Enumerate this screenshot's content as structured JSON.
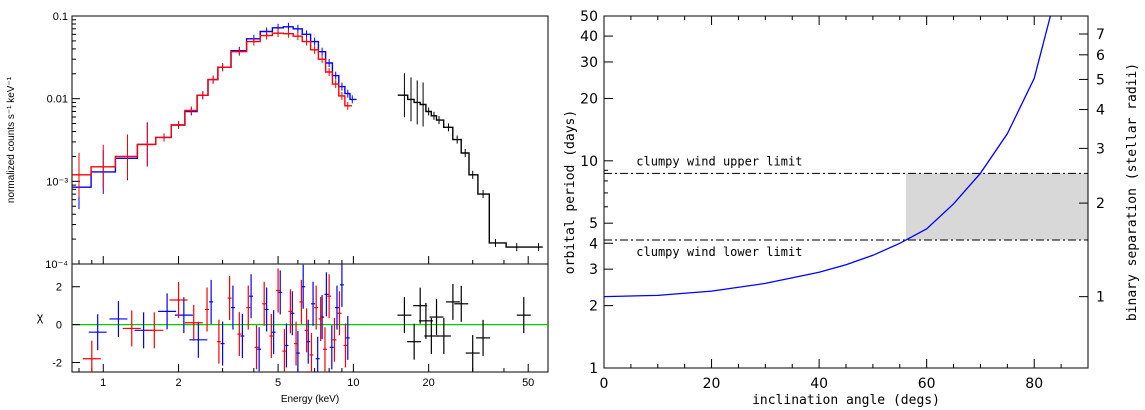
{
  "chart_data": [
    {
      "type": "line",
      "panel": "spectrum-top",
      "ylabel": "normalized counts s⁻¹ keV⁻¹",
      "xscale": "log",
      "yscale": "log",
      "xlim": [
        0.75,
        60
      ],
      "ylim": [
        0.0001,
        0.1
      ],
      "y_tick_labels": [
        "0.1",
        "0.01",
        "10⁻³",
        "10⁻⁴"
      ],
      "y_tick_values": [
        0.1,
        0.01,
        0.001,
        0.0001
      ],
      "series": [
        {
          "color": "#0000ff",
          "x": [
            0.8,
            1.0,
            1.25,
            1.5,
            1.75,
            2.0,
            2.25,
            2.5,
            2.75,
            3.0,
            3.5,
            4.0,
            4.5,
            5.0,
            5.5,
            6.0,
            6.5,
            7.0,
            7.5,
            8.0,
            8.5,
            9.0,
            9.5,
            9.9
          ],
          "y": [
            0.00085,
            0.0013,
            0.0019,
            0.0028,
            0.0034,
            0.0048,
            0.007,
            0.011,
            0.017,
            0.024,
            0.038,
            0.053,
            0.065,
            0.072,
            0.074,
            0.07,
            0.06,
            0.049,
            0.037,
            0.027,
            0.019,
            0.014,
            0.0115,
            0.0098
          ]
        },
        {
          "color": "#ff0000",
          "x": [
            0.8,
            1.0,
            1.25,
            1.5,
            1.75,
            2.0,
            2.25,
            2.5,
            2.75,
            3.0,
            3.5,
            4.0,
            4.5,
            5.0,
            5.5,
            6.0,
            6.5,
            7.0,
            7.5,
            8.0,
            8.5,
            9.0,
            9.5
          ],
          "y": [
            0.0012,
            0.0015,
            0.002,
            0.0028,
            0.0034,
            0.0048,
            0.0072,
            0.011,
            0.017,
            0.024,
            0.037,
            0.049,
            0.058,
            0.062,
            0.061,
            0.057,
            0.049,
            0.039,
            0.03,
            0.021,
            0.015,
            0.0108,
            0.0082
          ]
        },
        {
          "color": "#000000",
          "x": [
            16,
            17,
            18,
            19,
            20,
            21,
            22,
            24,
            26,
            28,
            30,
            33,
            37,
            45,
            55
          ],
          "y": [
            0.011,
            0.0098,
            0.009,
            0.0085,
            0.007,
            0.0062,
            0.0055,
            0.0045,
            0.0032,
            0.0022,
            0.0012,
            0.0007,
            0.00018,
            0.00016,
            0.00016
          ]
        }
      ]
    },
    {
      "type": "scatter",
      "panel": "residuals",
      "xlabel": "Energy (keV)",
      "ylabel": "χ",
      "xscale": "log",
      "xlim": [
        0.75,
        60
      ],
      "ylim": [
        -2.5,
        3.2
      ],
      "x_tick_labels": [
        "1",
        "2",
        "5",
        "10",
        "20",
        "50"
      ],
      "x_tick_values": [
        1,
        2,
        5,
        10,
        20,
        50
      ],
      "y_tick_labels": [
        "2",
        "0",
        "-2"
      ],
      "y_tick_values": [
        2,
        0,
        -2
      ],
      "zero_line_color": "#00cc00",
      "series": [
        {
          "color": "#0000ff",
          "x": [
            0.95,
            1.15,
            1.45,
            1.8,
            2.1,
            2.4,
            2.7,
            3.0,
            3.3,
            3.6,
            3.9,
            4.2,
            4.5,
            4.8,
            5.1,
            5.4,
            5.7,
            6.0,
            6.3,
            6.6,
            6.9,
            7.2,
            7.5,
            7.8,
            8.2,
            8.6,
            9.0,
            9.5
          ],
          "y": [
            -0.4,
            0.3,
            -0.3,
            0.7,
            0.5,
            -0.8,
            1.2,
            -1.0,
            0.9,
            -0.6,
            1.5,
            -1.3,
            0.8,
            -0.4,
            1.7,
            -1.1,
            0.6,
            -1.5,
            2.0,
            -0.9,
            1.1,
            -1.8,
            0.4,
            1.6,
            -1.2,
            0.9,
            2.1,
            -0.7
          ]
        },
        {
          "color": "#ff0000",
          "x": [
            0.9,
            1.3,
            1.6,
            2.0,
            2.3,
            2.6,
            2.9,
            3.2,
            3.5,
            3.8,
            4.1,
            4.4,
            4.7,
            5.0,
            5.3,
            5.6,
            5.9,
            6.2,
            6.5,
            6.8,
            7.1,
            7.4,
            7.7,
            8.0,
            8.4,
            8.8,
            9.3
          ],
          "y": [
            -1.8,
            -0.2,
            -0.3,
            1.3,
            0.1,
            0.8,
            -0.9,
            1.4,
            -0.5,
            0.9,
            -1.2,
            1.1,
            -0.6,
            1.8,
            -1.4,
            0.7,
            -1.0,
            1.2,
            -0.3,
            -1.6,
            0.9,
            0.3,
            -1.3,
            1.5,
            -0.8,
            0.6,
            -1.1
          ]
        },
        {
          "color": "#000000",
          "x": [
            16,
            17.5,
            18.5,
            19.5,
            20.5,
            21.5,
            23,
            25,
            27,
            30,
            33,
            48
          ],
          "y": [
            0.5,
            -0.9,
            1.0,
            0.2,
            -0.6,
            0.4,
            -0.6,
            1.2,
            1.1,
            -1.5,
            -0.7,
            0.5
          ]
        }
      ]
    },
    {
      "type": "line",
      "panel": "orbital-period",
      "xlabel": "inclination angle (degs)",
      "ylabel": "orbital period (days)",
      "y2label": "binary separation (stellar radii)",
      "xlim": [
        0,
        90
      ],
      "ylim": [
        1,
        50
      ],
      "yscale": "log",
      "x_tick_labels": [
        "0",
        "20",
        "40",
        "60",
        "80"
      ],
      "x_tick_values": [
        0,
        20,
        40,
        60,
        80
      ],
      "y_tick_labels": [
        "1",
        "2",
        "3",
        "4",
        "5",
        "10",
        "20",
        "30",
        "40",
        "50"
      ],
      "y_tick_values": [
        1,
        2,
        3,
        4,
        5,
        10,
        20,
        30,
        40,
        50
      ],
      "y2_tick_labels": [
        "1",
        "2",
        "3",
        "4",
        "5",
        "6",
        "7"
      ],
      "y2_tick_values": [
        1,
        2,
        3,
        4,
        5,
        6,
        7
      ],
      "curve_color": "#0000ff",
      "series": [
        {
          "x": [
            0,
            10,
            20,
            30,
            40,
            45,
            50,
            55,
            60,
            65,
            70,
            75,
            80,
            83
          ],
          "y": [
            2.21,
            2.24,
            2.35,
            2.56,
            2.9,
            3.15,
            3.5,
            4.0,
            4.7,
            6.2,
            8.7,
            13.5,
            25,
            50
          ]
        }
      ],
      "annotations": [
        {
          "text": "clumpy wind upper limit",
          "y": 8.7
        },
        {
          "text": "clumpy wind lower limit",
          "y": 4.15
        }
      ],
      "shaded_region": {
        "y_low": 4.15,
        "y_high": 8.7,
        "x_high": 90
      }
    }
  ]
}
